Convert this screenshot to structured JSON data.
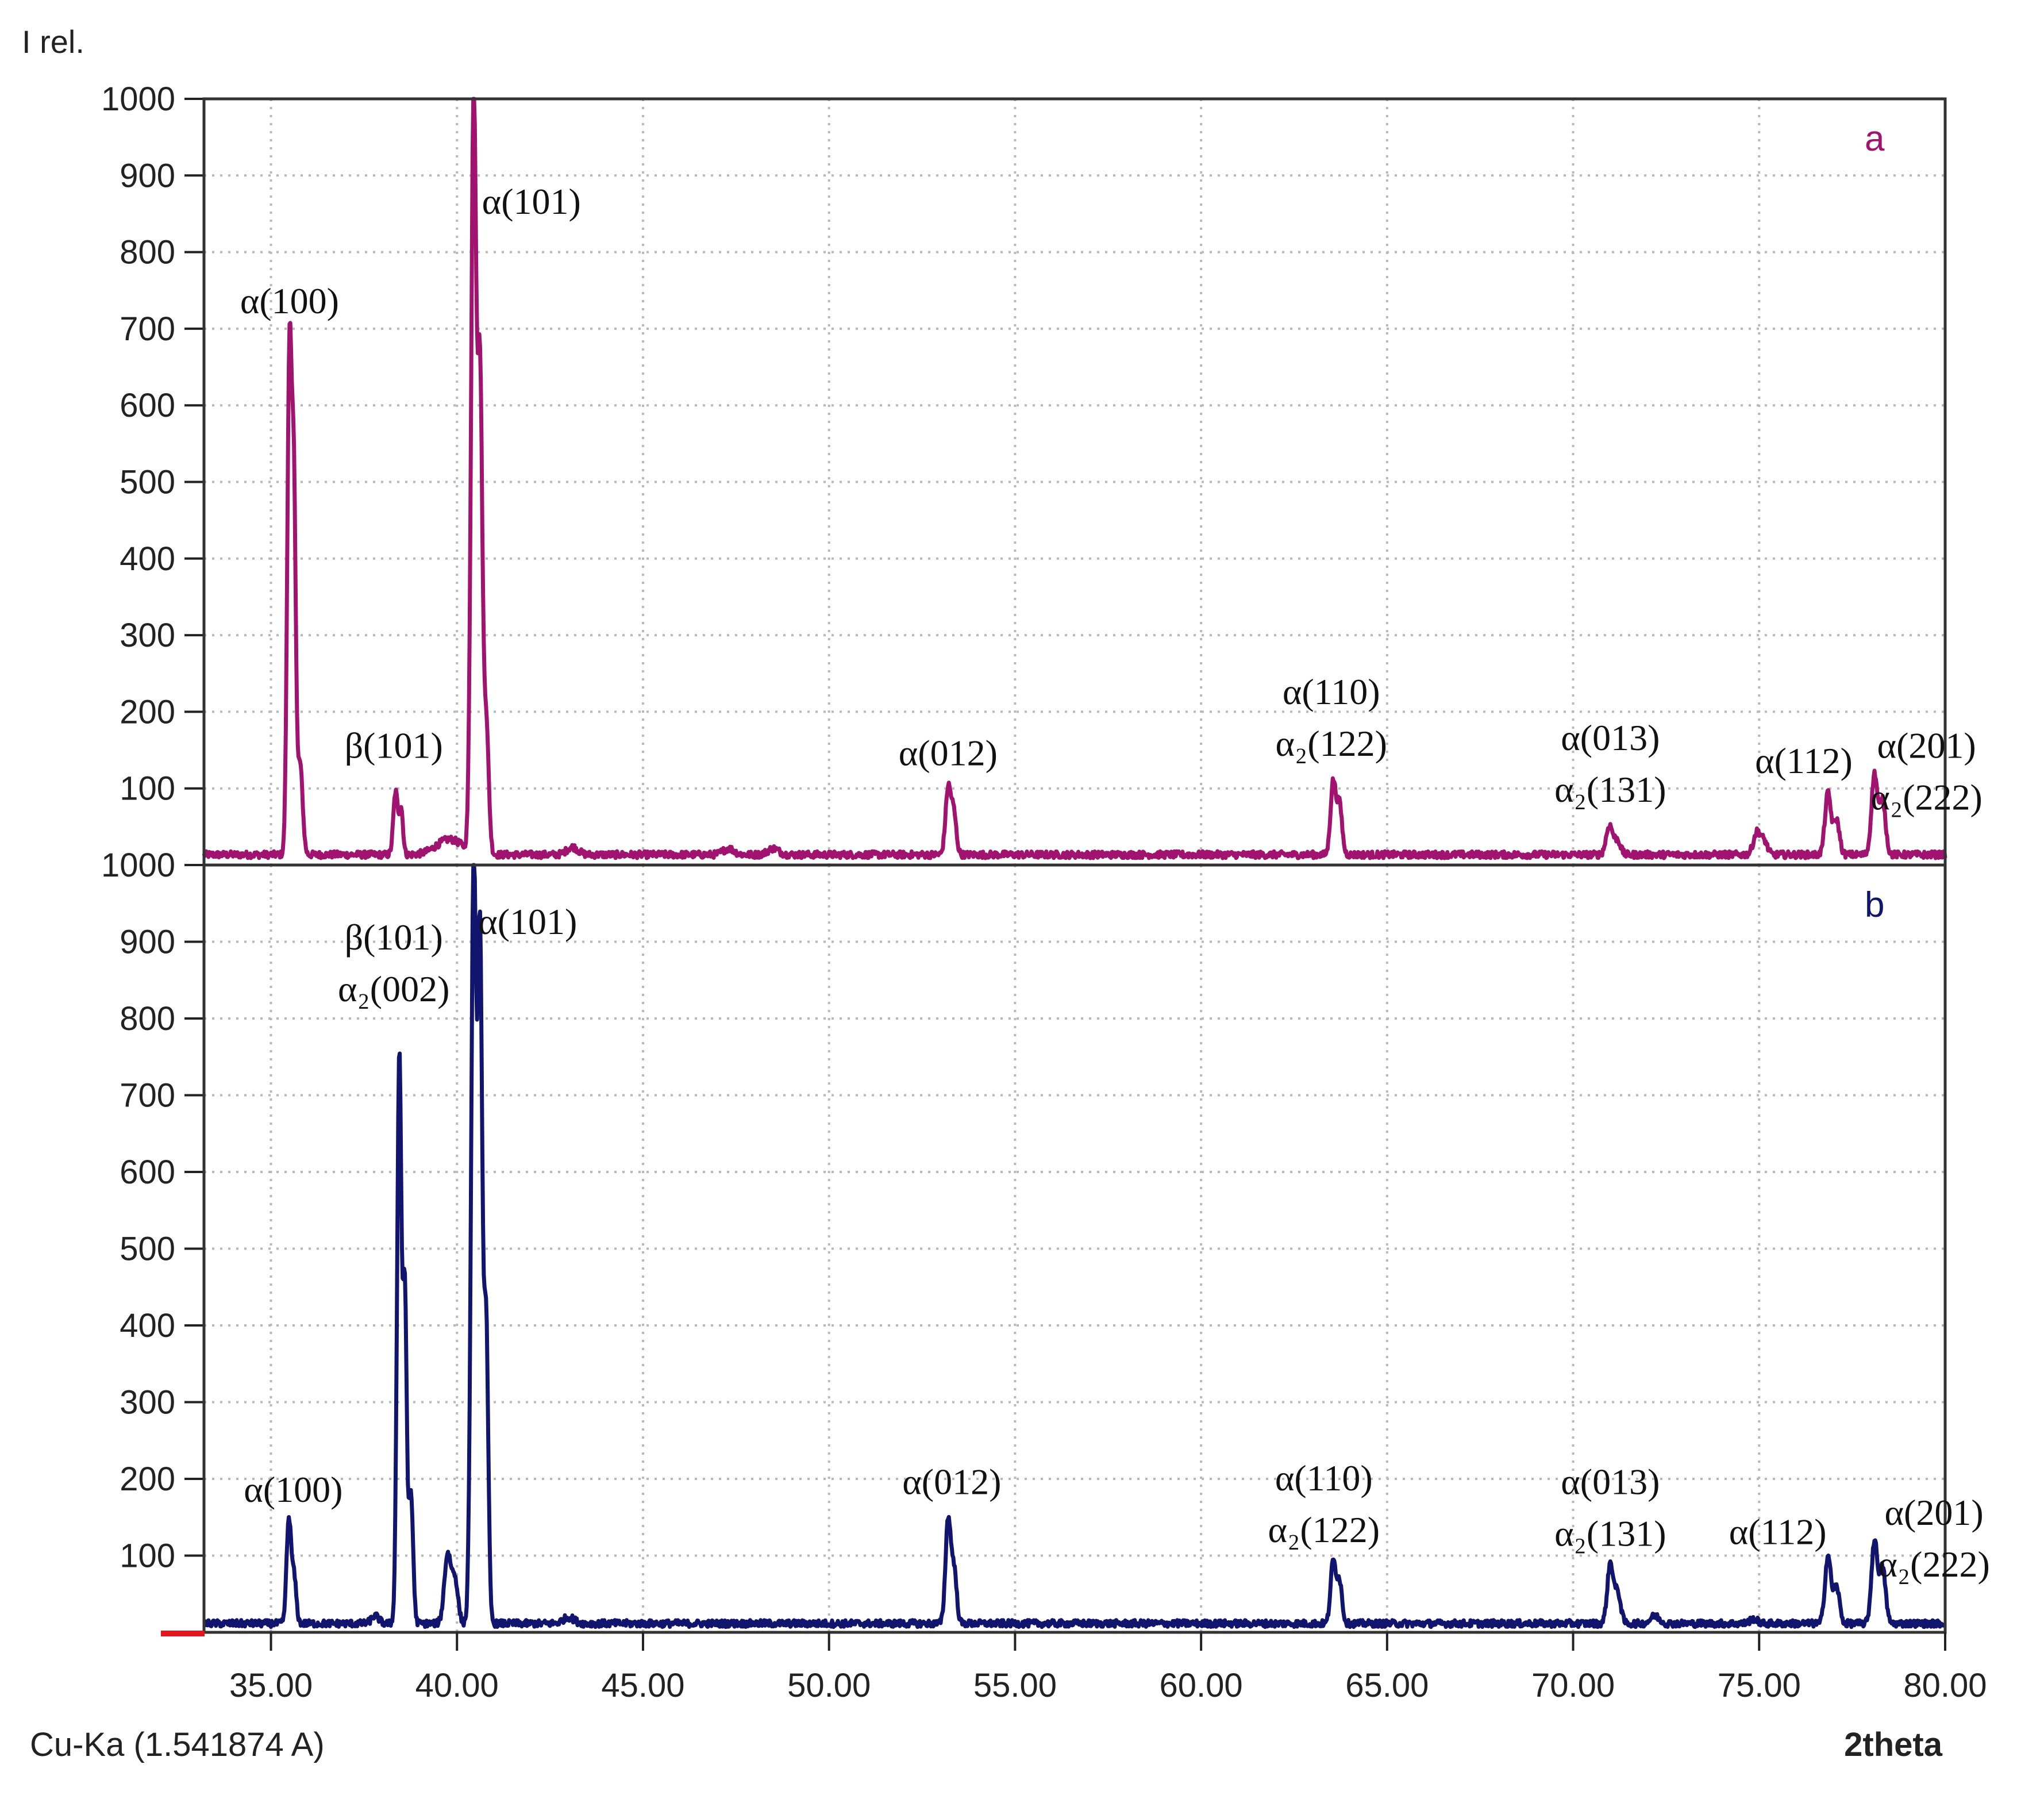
{
  "chart_data": [
    {
      "type": "line",
      "panel": "a",
      "panel_label": "a",
      "color": "#a0136e",
      "ylabel": "I rel.",
      "xlim": [
        33.2,
        80.0
      ],
      "ylim": [
        0,
        1000
      ],
      "yticks": [
        100,
        200,
        300,
        400,
        500,
        600,
        700,
        800,
        900,
        1000
      ],
      "grid": true,
      "baseline": 12,
      "peaks": [
        {
          "x": 35.5,
          "y": 670,
          "w": 0.06
        },
        {
          "x": 35.62,
          "y": 430,
          "w": 0.05
        },
        {
          "x": 35.78,
          "y": 120,
          "w": 0.07
        },
        {
          "x": 38.35,
          "y": 82,
          "w": 0.06
        },
        {
          "x": 38.5,
          "y": 60,
          "w": 0.05
        },
        {
          "x": 39.8,
          "y": 20,
          "w": 0.35
        },
        {
          "x": 40.45,
          "y": 1000,
          "w": 0.07
        },
        {
          "x": 40.62,
          "y": 600,
          "w": 0.06
        },
        {
          "x": 40.78,
          "y": 180,
          "w": 0.07
        },
        {
          "x": 43.1,
          "y": 10,
          "w": 0.15
        },
        {
          "x": 47.3,
          "y": 8,
          "w": 0.15
        },
        {
          "x": 48.5,
          "y": 8,
          "w": 0.15
        },
        {
          "x": 53.2,
          "y": 85,
          "w": 0.07
        },
        {
          "x": 53.35,
          "y": 55,
          "w": 0.07
        },
        {
          "x": 63.55,
          "y": 95,
          "w": 0.07
        },
        {
          "x": 63.72,
          "y": 65,
          "w": 0.07
        },
        {
          "x": 70.98,
          "y": 38,
          "w": 0.09
        },
        {
          "x": 71.2,
          "y": 18,
          "w": 0.08
        },
        {
          "x": 74.95,
          "y": 30,
          "w": 0.1
        },
        {
          "x": 75.15,
          "y": 15,
          "w": 0.08
        },
        {
          "x": 76.85,
          "y": 80,
          "w": 0.08
        },
        {
          "x": 77.08,
          "y": 45,
          "w": 0.08
        },
        {
          "x": 78.1,
          "y": 105,
          "w": 0.08
        },
        {
          "x": 78.32,
          "y": 70,
          "w": 0.08
        }
      ],
      "annotations": [
        {
          "lines": [
            "α(100)"
          ],
          "x": 35.5,
          "y": 720
        },
        {
          "lines": [
            "β(101)"
          ],
          "x": 38.3,
          "y": 140
        },
        {
          "lines": [
            "α(101)"
          ],
          "x": 42.0,
          "y": 850
        },
        {
          "lines": [
            "α(012)"
          ],
          "x": 53.2,
          "y": 130
        },
        {
          "lines": [
            "α(110)",
            "α₂(122)"
          ],
          "x": 63.5,
          "y": 210
        },
        {
          "lines": [
            "α(013)",
            "α₂(131)"
          ],
          "x": 71.0,
          "y": 150
        },
        {
          "lines": [
            "α(112)"
          ],
          "x": 76.2,
          "y": 120
        },
        {
          "lines": [
            "α(201)",
            "α₂(222)"
          ],
          "x": 79.5,
          "y": 140
        }
      ]
    },
    {
      "type": "line",
      "panel": "b",
      "panel_label": "b",
      "color": "#12156e",
      "xlabel": "2theta",
      "xlim": [
        33.2,
        80.0
      ],
      "ylim": [
        0,
        1000
      ],
      "xticks": [
        35,
        40,
        45,
        50,
        55,
        60,
        65,
        70,
        75,
        80
      ],
      "xtick_labels": [
        "35.00",
        "40.00",
        "45.00",
        "50.00",
        "55.00",
        "60.00",
        "65.00",
        "70.00",
        "75.00",
        "80.00"
      ],
      "yticks": [
        100,
        200,
        300,
        400,
        500,
        600,
        700,
        800,
        900,
        1000
      ],
      "grid": true,
      "baseline": 10,
      "peaks": [
        {
          "x": 35.48,
          "y": 135,
          "w": 0.06
        },
        {
          "x": 35.62,
          "y": 60,
          "w": 0.06
        },
        {
          "x": 37.8,
          "y": 10,
          "w": 0.1
        },
        {
          "x": 38.45,
          "y": 745,
          "w": 0.06
        },
        {
          "x": 38.6,
          "y": 420,
          "w": 0.05
        },
        {
          "x": 38.76,
          "y": 170,
          "w": 0.06
        },
        {
          "x": 39.75,
          "y": 90,
          "w": 0.09
        },
        {
          "x": 39.95,
          "y": 55,
          "w": 0.08
        },
        {
          "x": 40.45,
          "y": 1000,
          "w": 0.07
        },
        {
          "x": 40.62,
          "y": 860,
          "w": 0.06
        },
        {
          "x": 40.78,
          "y": 400,
          "w": 0.06
        },
        {
          "x": 43.0,
          "y": 8,
          "w": 0.15
        },
        {
          "x": 53.2,
          "y": 135,
          "w": 0.07
        },
        {
          "x": 53.36,
          "y": 70,
          "w": 0.07
        },
        {
          "x": 63.55,
          "y": 80,
          "w": 0.07
        },
        {
          "x": 63.72,
          "y": 55,
          "w": 0.07
        },
        {
          "x": 71.0,
          "y": 78,
          "w": 0.08
        },
        {
          "x": 71.2,
          "y": 40,
          "w": 0.08
        },
        {
          "x": 72.2,
          "y": 10,
          "w": 0.12
        },
        {
          "x": 74.85,
          "y": 6,
          "w": 0.1
        },
        {
          "x": 76.85,
          "y": 88,
          "w": 0.08
        },
        {
          "x": 77.08,
          "y": 48,
          "w": 0.08
        },
        {
          "x": 78.1,
          "y": 108,
          "w": 0.08
        },
        {
          "x": 78.32,
          "y": 72,
          "w": 0.08
        }
      ],
      "annotations": [
        {
          "lines": [
            "α(100)"
          ],
          "x": 35.6,
          "y": 170
        },
        {
          "lines": [
            "β(101)",
            "α₂(002)"
          ],
          "x": 38.3,
          "y": 890
        },
        {
          "lines": [
            "α(101)"
          ],
          "x": 41.9,
          "y": 910
        },
        {
          "lines": [
            "α(012)"
          ],
          "x": 53.3,
          "y": 180
        },
        {
          "lines": [
            "α(110)",
            "α₂(122)"
          ],
          "x": 63.3,
          "y": 185
        },
        {
          "lines": [
            "α(013)",
            "α₂(131)"
          ],
          "x": 71.0,
          "y": 180
        },
        {
          "lines": [
            "α(112)"
          ],
          "x": 75.5,
          "y": 115
        },
        {
          "lines": [
            "α(201)",
            "α₂(222)"
          ],
          "x": 79.7,
          "y": 140
        }
      ]
    }
  ],
  "footer": {
    "radiation": "Cu-Ka (1.541874 A)"
  }
}
